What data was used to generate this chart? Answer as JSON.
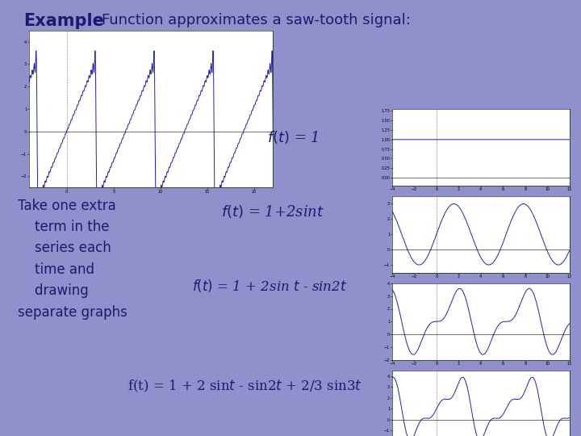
{
  "title_bold": "Example",
  "title_rest": "  Function approximates a saw-tooth signal:",
  "bg_color": "#9090cc",
  "text_color": "#1a1a6e",
  "plot_bg": "#ffffff",
  "line_color": "#2222aa",
  "left_text_lines": [
    "Take one extra",
    "    term in the",
    "    series each",
    "    time and",
    "    drawing",
    "separate graphs"
  ],
  "t_range_big": [
    -4,
    22
  ],
  "big_xlim": [
    -4,
    22
  ],
  "big_ylim": [
    -2.5,
    4.5
  ],
  "small_xlim": [
    -4,
    12
  ],
  "ylim1": [
    -0.2,
    1.8
  ],
  "ylim2": [
    -1.5,
    3.5
  ],
  "ylim3": [
    -2.0,
    4.0
  ],
  "ylim4": [
    -2.5,
    4.5
  ]
}
